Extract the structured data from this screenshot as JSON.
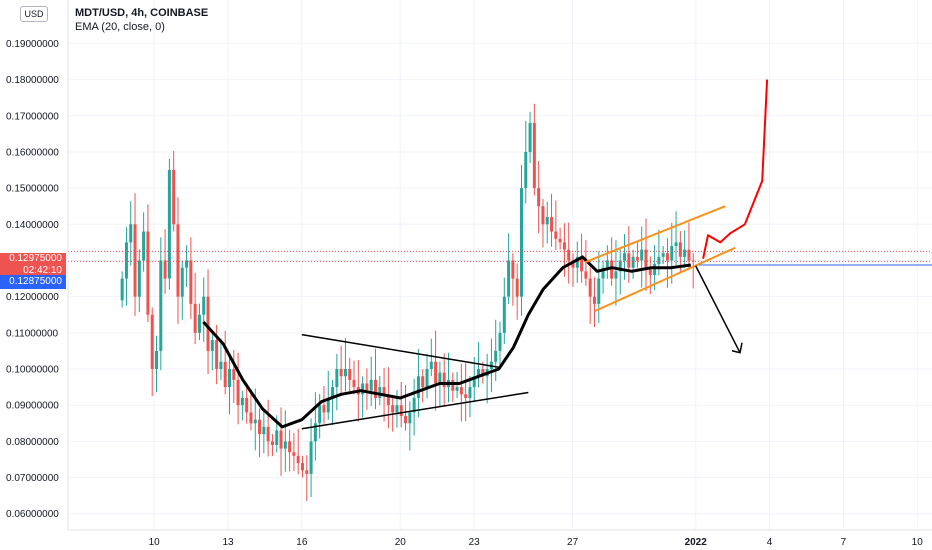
{
  "header": {
    "symbol": "MDT/USD, 4h, COINBASE",
    "indicator": "EMA (20, close, 0)",
    "currency": "USD"
  },
  "price_tags": {
    "last_price": "0.12975000",
    "countdown": "02:42:10",
    "ema_price": "0.12875000",
    "last_color": "#ef5350",
    "ema_color": "#2962ff"
  },
  "colors": {
    "up": "#26a69a",
    "down": "#ef5350",
    "ema": "#000000",
    "channel": "#f7931a",
    "forecast_up": "#ff0000",
    "forecast_down": "#000000",
    "hline": "#2962ff"
  },
  "chart_data": {
    "type": "candlestick",
    "title": "MDT/USD, 4h, COINBASE",
    "y_ticks": [
      0.06,
      0.07,
      0.08,
      0.09,
      0.1,
      0.11,
      0.12,
      0.13,
      0.14,
      0.15,
      0.16,
      0.17,
      0.18,
      0.19
    ],
    "y_tick_labels": [
      "0.06000000",
      "0.07000000",
      "0.08000000",
      "0.09000000",
      "0.10000000",
      "0.11000000",
      "0.12000000",
      "0.13000000",
      "0.14000000",
      "0.15000000",
      "0.16000000",
      "0.17000000",
      "0.18000000",
      "0.19000000"
    ],
    "ylim": [
      0.0555,
      0.202
    ],
    "x_ticks": [
      {
        "day": 10,
        "label": "10"
      },
      {
        "day": 13,
        "label": "13"
      },
      {
        "day": 16,
        "label": "16"
      },
      {
        "day": 20,
        "label": "20"
      },
      {
        "day": 23,
        "label": "23"
      },
      {
        "day": 27,
        "label": "27"
      },
      {
        "day": 32,
        "label": "2022"
      },
      {
        "day": 35,
        "label": "4"
      },
      {
        "day": 38,
        "label": "7"
      },
      {
        "day": 41,
        "label": "10"
      }
    ],
    "xlim": [
      6.5,
      41.6
    ],
    "last_price": 0.12975,
    "ema_last": 0.12875,
    "closes": [
      0.125,
      0.135,
      0.14,
      0.12,
      0.13,
      0.138,
      0.115,
      0.1,
      0.105,
      0.13,
      0.125,
      0.155,
      0.14,
      0.12,
      0.128,
      0.13,
      0.118,
      0.11,
      0.115,
      0.12,
      0.105,
      0.108,
      0.1,
      0.102,
      0.095,
      0.1,
      0.097,
      0.09,
      0.092,
      0.088,
      0.085,
      0.086,
      0.082,
      0.084,
      0.08,
      0.079,
      0.083,
      0.078,
      0.08,
      0.077,
      0.076,
      0.074,
      0.072,
      0.071,
      0.08,
      0.085,
      0.09,
      0.088,
      0.092,
      0.095,
      0.1,
      0.098,
      0.1,
      0.097,
      0.095,
      0.093,
      0.096,
      0.094,
      0.097,
      0.092,
      0.095,
      0.093,
      0.09,
      0.088,
      0.09,
      0.087,
      0.085,
      0.088,
      0.092,
      0.098,
      0.095,
      0.1,
      0.102,
      0.096,
      0.099,
      0.095,
      0.097,
      0.094,
      0.095,
      0.093,
      0.092,
      0.095,
      0.098,
      0.1,
      0.098,
      0.1,
      0.102,
      0.105,
      0.11,
      0.12,
      0.13,
      0.125,
      0.12,
      0.15,
      0.16,
      0.168,
      0.15,
      0.145,
      0.14,
      0.142,
      0.138,
      0.136,
      0.135,
      0.133,
      0.13,
      0.128,
      0.131,
      0.127,
      0.125,
      0.12,
      0.118,
      0.125,
      0.128,
      0.13,
      0.125,
      0.127,
      0.13,
      0.132,
      0.128,
      0.131,
      0.13,
      0.133,
      0.128,
      0.126,
      0.129,
      0.131,
      0.132,
      0.13,
      0.134,
      0.135,
      0.131,
      0.133,
      0.13,
      0.12975
    ],
    "ema": [
      [
        12.0,
        0.113
      ],
      [
        12.8,
        0.107
      ],
      [
        13.6,
        0.097
      ],
      [
        14.4,
        0.089
      ],
      [
        15.2,
        0.084
      ],
      [
        16.0,
        0.086
      ],
      [
        16.8,
        0.091
      ],
      [
        17.6,
        0.093
      ],
      [
        18.4,
        0.094
      ],
      [
        19.2,
        0.093
      ],
      [
        20.0,
        0.092
      ],
      [
        20.8,
        0.094
      ],
      [
        21.6,
        0.096
      ],
      [
        22.4,
        0.096
      ],
      [
        23.2,
        0.098
      ],
      [
        24.0,
        0.1
      ],
      [
        24.6,
        0.106
      ],
      [
        25.2,
        0.115
      ],
      [
        25.8,
        0.122
      ],
      [
        26.6,
        0.128
      ],
      [
        27.4,
        0.131
      ],
      [
        28.0,
        0.127
      ],
      [
        28.6,
        0.128
      ],
      [
        29.4,
        0.127
      ],
      [
        30.2,
        0.128
      ],
      [
        31.0,
        0.128
      ],
      [
        31.8,
        0.12875
      ]
    ],
    "annotations": {
      "triangle_upper": [
        [
          16.0,
          0.1095
        ],
        [
          24.0,
          0.1005
        ]
      ],
      "triangle_lower": [
        [
          16.0,
          0.0835
        ],
        [
          25.2,
          0.0935
        ]
      ],
      "channel_upper": [
        [
          27.5,
          0.1295
        ],
        [
          33.2,
          0.145
        ]
      ],
      "channel_lower": [
        [
          27.9,
          0.116
        ],
        [
          33.6,
          0.1335
        ]
      ],
      "forecast_up": [
        [
          32.3,
          0.1305
        ],
        [
          32.5,
          0.137
        ],
        [
          33.0,
          0.135
        ],
        [
          33.4,
          0.1375
        ],
        [
          34.0,
          0.14
        ],
        [
          34.7,
          0.152
        ],
        [
          34.9,
          0.18
        ]
      ],
      "forecast_down": [
        [
          32.0,
          0.1285
        ],
        [
          33.8,
          0.1045
        ]
      ]
    }
  }
}
